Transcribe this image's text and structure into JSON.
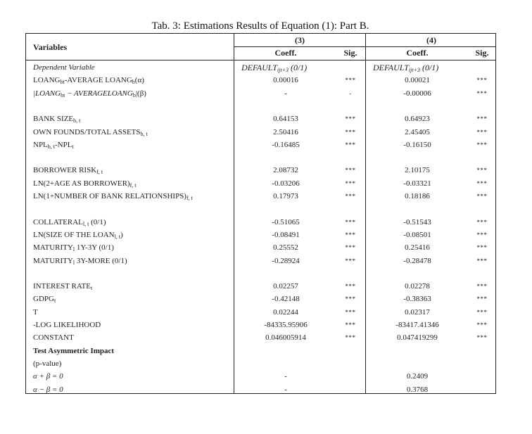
{
  "title": "Tab. 3: Estimations Results of Equation (1): Part B.",
  "header": {
    "variables": "Variables",
    "models": [
      "(3)",
      "(4)"
    ],
    "coeff": "Coeff.",
    "sig": "Sig."
  },
  "rows": [
    {
      "label": [
        {
          "t": "Dependent Variable",
          "it": true
        }
      ],
      "dep": true,
      "c3": "DEFAULT",
      "c3sub": "ijt+3",
      "c3suf": " (0/1)",
      "c4": "DEFAULT",
      "c4sub": "ijt+3",
      "c4suf": " (0/1)"
    },
    {
      "label": [
        {
          "t": "LOANG"
        },
        {
          "t": "bt",
          "sub": true
        },
        {
          "t": "-AVERAGE LOANG"
        },
        {
          "t": "b",
          "sub": true
        },
        {
          "t": "(α)"
        }
      ],
      "c3": "0.00016",
      "s3": "***",
      "c4": "0.00021",
      "s4": "***"
    },
    {
      "label": [
        {
          "t": "|LOANG",
          "it": true
        },
        {
          "t": "bt",
          "sub": true
        },
        {
          "t": " − AVERAGELOANG",
          "it": true
        },
        {
          "t": "b",
          "sub": true
        },
        {
          "t": "|(β)"
        }
      ],
      "c3": "-",
      "s3": "-",
      "c4": "-0.00006",
      "s4": "***"
    },
    {
      "blank": true
    },
    {
      "label": [
        {
          "t": "BANK SIZE"
        },
        {
          "t": "b, t",
          "sub": true
        }
      ],
      "c3": "0.64153",
      "s3": "***",
      "c4": "0.64923",
      "s4": "***"
    },
    {
      "label": [
        {
          "t": "OWN FOUNDS/TOTAL ASSETS"
        },
        {
          "t": "b, t",
          "sub": true
        }
      ],
      "c3": "2.50416",
      "s3": "***",
      "c4": "2.45405",
      "s4": "***"
    },
    {
      "label": [
        {
          "t": "NPL"
        },
        {
          "t": "b, t",
          "sub": true
        },
        {
          "t": "-NPL"
        },
        {
          "t": "t",
          "sub": true
        }
      ],
      "c3": "-0.16485",
      "s3": "***",
      "c4": "-0.16150",
      "s4": "***"
    },
    {
      "blank": true
    },
    {
      "label": [
        {
          "t": "BORROWER RISK"
        },
        {
          "t": "f, t",
          "sub": true
        }
      ],
      "c3": "2.08732",
      "s3": "***",
      "c4": "2.10175",
      "s4": "***"
    },
    {
      "label": [
        {
          "t": "LN(2+AGE AS BORROWER)"
        },
        {
          "t": "f, t",
          "sub": true
        }
      ],
      "c3": "-0.03206",
      "s3": "***",
      "c4": "-0.03321",
      "s4": "***"
    },
    {
      "label": [
        {
          "t": "LN(1+NUMBER OF BANK RELATIONSHIPS)"
        },
        {
          "t": "f, t",
          "sub": true
        }
      ],
      "c3": "0.17973",
      "s3": "***",
      "c4": "0.18186",
      "s4": "***"
    },
    {
      "blank": true
    },
    {
      "label": [
        {
          "t": "COLLATERAL"
        },
        {
          "t": "l, t",
          "sub": true
        },
        {
          "t": " (0/1)"
        }
      ],
      "c3": "-0.51065",
      "s3": "***",
      "c4": "-0.51543",
      "s4": "***"
    },
    {
      "label": [
        {
          "t": "LN(SIZE OF THE LOAN"
        },
        {
          "t": "l, t",
          "sub": true
        },
        {
          "t": ")"
        }
      ],
      "c3": "-0.08491",
      "s3": "***",
      "c4": "-0.08501",
      "s4": "***"
    },
    {
      "label": [
        {
          "t": "MATURITY"
        },
        {
          "t": "l",
          "sub": true
        },
        {
          "t": " 1Y-3Y (0/1)"
        }
      ],
      "c3": "0.25552",
      "s3": "***",
      "c4": "0.25416",
      "s4": "***"
    },
    {
      "label": [
        {
          "t": "MATURITY"
        },
        {
          "t": "l",
          "sub": true
        },
        {
          "t": " 3Y-MORE (0/1)"
        }
      ],
      "c3": "-0.28924",
      "s3": "***",
      "c4": "-0.28478",
      "s4": "***"
    },
    {
      "blank": true
    },
    {
      "label": [
        {
          "t": "INTEREST RATE"
        },
        {
          "t": "t",
          "sub": true
        }
      ],
      "c3": "0.02257",
      "s3": "***",
      "c4": "0.02278",
      "s4": "***"
    },
    {
      "label": [
        {
          "t": "GDPG"
        },
        {
          "t": "t",
          "sub": true
        }
      ],
      "c3": "-0.42148",
      "s3": "***",
      "c4": "-0.38363",
      "s4": "***"
    },
    {
      "label": [
        {
          "t": "T"
        }
      ],
      "c3": "0.02244",
      "s3": "***",
      "c4": "0.02317",
      "s4": "***"
    },
    {
      "label": [
        {
          "t": "-LOG LIKELIHOOD"
        }
      ],
      "c3": "-84335.95906",
      "s3": "***",
      "c4": "-83417.41346",
      "s4": "***"
    },
    {
      "label": [
        {
          "t": "CONSTANT"
        }
      ],
      "c3": "0.046005914",
      "s3": "***",
      "c4": "0.047419299",
      "s4": "***"
    },
    {
      "label": [
        {
          "t": "Test Asymmetric Impact",
          "b": true
        }
      ]
    },
    {
      "label": [
        {
          "t": "(p-value)"
        }
      ]
    },
    {
      "label": [
        {
          "t": "α + β = 0",
          "it": true
        }
      ],
      "c3": "-",
      "c4": "0.2409"
    },
    {
      "label": [
        {
          "t": "α − β = 0",
          "it": true
        }
      ],
      "c3": "-",
      "c4": "0.3768"
    }
  ]
}
